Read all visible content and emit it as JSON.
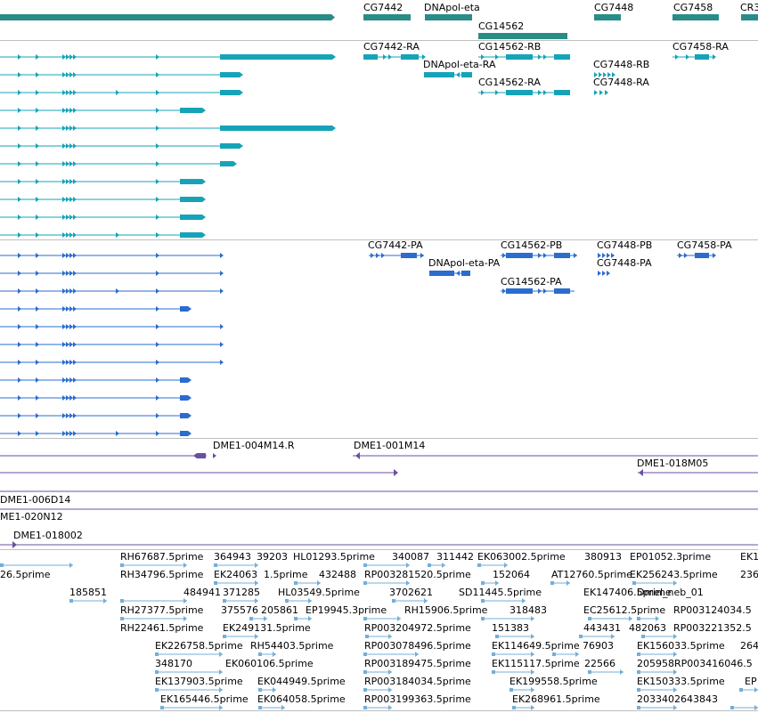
{
  "colors": {
    "gene_track": "#2a8c87",
    "transcript_track": "#16a3b8",
    "protein_track": "#2b6ccf",
    "clone_track": "#6a4fa3",
    "est_track": "#74afd8",
    "separator": "#bfbfbf",
    "background": "#ffffff"
  },
  "tracks": {
    "genes": {
      "labels": [
        "CG7442",
        "DNApol-eta",
        "CG14562",
        "CG7448",
        "CG7458",
        "CR3"
      ]
    },
    "transcripts": {
      "labels": [
        "CG7442-RA",
        "CG14562-RB",
        "CG7458-RA",
        "DNApol-eta-RA",
        "CG7448-RB",
        "CG14562-RA",
        "CG7448-RA"
      ]
    },
    "proteins": {
      "labels": [
        "CG7442-PA",
        "CG14562-PB",
        "CG7448-PB",
        "CG7458-PA",
        "DNApol-eta-PA",
        "CG7448-PA",
        "CG14562-PA"
      ]
    },
    "clones": {
      "labels": [
        "DME1-004M14.R",
        "DME1-001M14",
        "DME1-018M05",
        "DME1-006D14",
        "ME1-020N12",
        "DME1-018002"
      ]
    },
    "ests": {
      "labels": [
        "RH67687.5prime",
        "364943",
        "39203",
        "HL01293.5prime",
        "340087",
        "311442",
        "EK063002.5prime",
        "380913",
        "EP01052.3prime",
        "EK1",
        "26.5prime",
        "RH34796.5prime",
        "EK24063",
        "1.5prime",
        "432488",
        "RP003281520.5prime",
        "152064",
        "AT12760.5prime",
        "EK256243.5prime",
        "236",
        "185851",
        "484941",
        "371285",
        "HL03549.5prime",
        "3702621",
        "SD11445.5prime",
        "EK147406.5prime",
        "Dmel_neb_01",
        "RH27377.5prime",
        "375576",
        "205861",
        "EP19945.3prime",
        "RH15906.5prime",
        "318483",
        "EC25612.5prime",
        "RP003124034.5",
        "RH22461.5prime",
        "EK249131.5prime",
        "RP003204972.5prime",
        "151383",
        "443431",
        "482063",
        "RP003221352.5",
        "EK226758.5prime",
        "RH54403.5prime",
        "RP003078496.5prime",
        "EK114649.5prime",
        "76903",
        "EK156033.5prime",
        "264",
        "348170",
        "EK060106.5prime",
        "RP003189475.5prime",
        "EK115117.5prime",
        "22566",
        "205958",
        "RP003416046.5",
        "EK137903.5prime",
        "EK044949.5prime",
        "RP003184034.5prime",
        "EK199558.5prime",
        "EK150333.5prime",
        "EP",
        "EK165446.5prime",
        "EK064058.5prime",
        "RP003199363.5prime",
        "EK268961.5prime",
        "2033402643843"
      ]
    }
  }
}
